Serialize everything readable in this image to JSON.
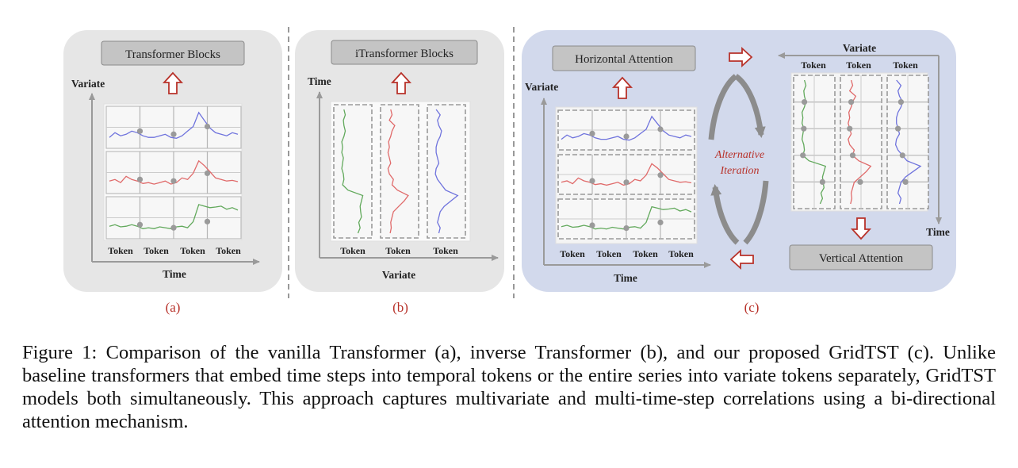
{
  "panel_a": {
    "box_label": "Transformer Blocks",
    "y_axis": "Variate",
    "x_axis": "Time",
    "tokens": [
      "Token",
      "Token",
      "Token",
      "Token"
    ],
    "tag": "(a)"
  },
  "panel_b": {
    "box_label": "iTransformer Blocks",
    "y_axis": "Time",
    "x_axis": "Variate",
    "tokens": [
      "Token",
      "Token",
      "Token"
    ],
    "tag": "(b)"
  },
  "panel_c": {
    "box_left": "Horizontal Attention",
    "box_right": "Vertical Attention",
    "left_y_axis": "Variate",
    "left_x_axis": "Time",
    "left_tokens": [
      "Token",
      "Token",
      "Token",
      "Token"
    ],
    "right_top_axis": "Variate",
    "right_side_axis": "Time",
    "right_tokens": [
      "Token",
      "Token",
      "Token"
    ],
    "cycle_line1": "Alternative",
    "cycle_line2": "Iteration",
    "tag": "(c)"
  },
  "caption": "Figure 1: Comparison of the vanilla Transformer (a), inverse Transformer (b), and our proposed GridTST (c). Unlike baseline transformers that embed time steps into temporal tokens or the entire series into variate tokens separately, GridTST models both simultaneously. This approach captures multivariate and multi-time-step correlations using a bi-directional attention mechanism.",
  "colors": {
    "panel_gray": "#e6e6e6",
    "panel_blue": "#d2d9ec",
    "box_fill": "#c4c4c4",
    "series_blue": "#6f73dd",
    "series_red": "#e06a6a",
    "series_green": "#62a95c",
    "arrow_red": "#b8322a",
    "tag_red": "#b8322a"
  }
}
